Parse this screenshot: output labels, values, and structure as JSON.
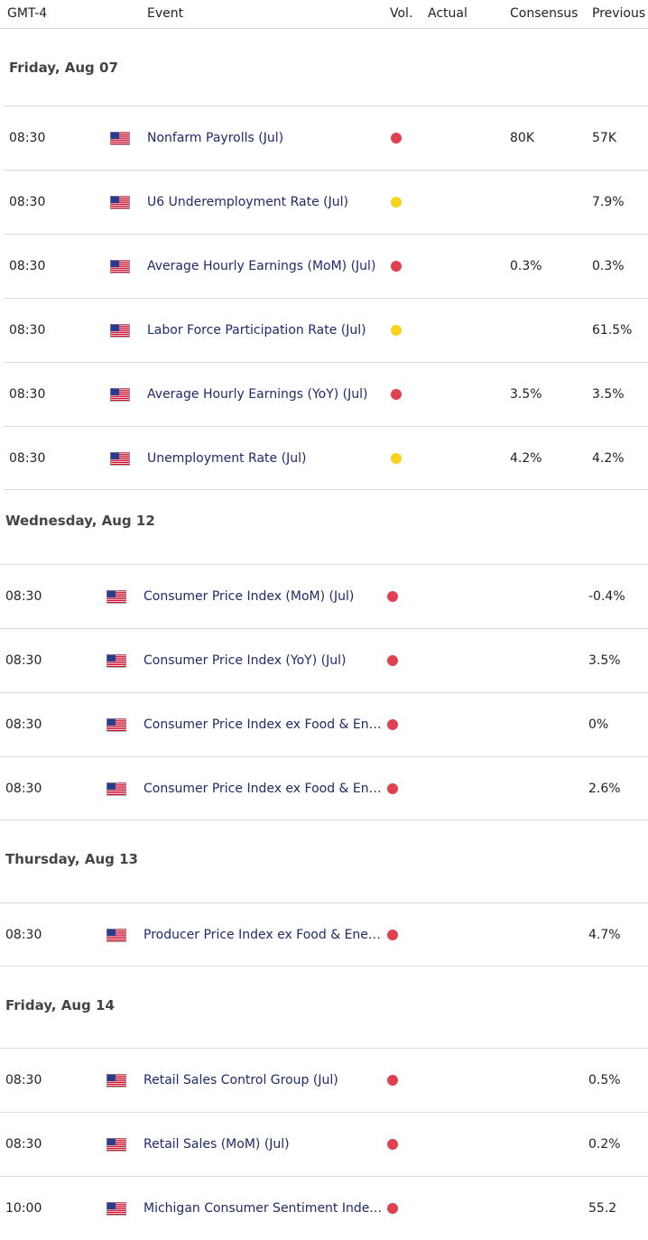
{
  "header": {
    "timezone": "GMT-4",
    "event": "Event",
    "vol": "Vol.",
    "actual": "Actual",
    "consensus": "Consensus",
    "previous": "Previous"
  },
  "colors": {
    "high": "#e0404f",
    "medium": "#f8d21c",
    "event_text": "#1f2a6b"
  },
  "days": [
    {
      "label": "Friday, Aug 07",
      "rows": [
        {
          "time": "08:30",
          "country": "us-flag-icon",
          "event": "Nonfarm Payrolls (Jul)",
          "vol": "high",
          "actual": "",
          "consensus": "80K",
          "previous": "57K"
        },
        {
          "time": "08:30",
          "country": "us-flag-icon",
          "event": "U6 Underemployment Rate (Jul)",
          "vol": "medium",
          "actual": "",
          "consensus": "",
          "previous": "7.9%"
        },
        {
          "time": "08:30",
          "country": "us-flag-icon",
          "event": "Average Hourly Earnings (MoM) (Jul)",
          "vol": "high",
          "actual": "",
          "consensus": "0.3%",
          "previous": "0.3%"
        },
        {
          "time": "08:30",
          "country": "us-flag-icon",
          "event": "Labor Force Participation Rate (Jul)",
          "vol": "medium",
          "actual": "",
          "consensus": "",
          "previous": "61.5%"
        },
        {
          "time": "08:30",
          "country": "us-flag-icon",
          "event": "Average Hourly Earnings (YoY) (Jul)",
          "vol": "high",
          "actual": "",
          "consensus": "3.5%",
          "previous": "3.5%"
        },
        {
          "time": "08:30",
          "country": "us-flag-icon",
          "event": "Unemployment Rate (Jul)",
          "vol": "medium",
          "actual": "",
          "consensus": "4.2%",
          "previous": "4.2%"
        }
      ]
    },
    {
      "label": "Wednesday, Aug 12",
      "rows": [
        {
          "time": "08:30",
          "country": "us-flag-icon",
          "event": "Consumer Price Index (MoM) (Jul)",
          "vol": "high",
          "actual": "",
          "consensus": "",
          "previous": "-0.4%"
        },
        {
          "time": "08:30",
          "country": "us-flag-icon",
          "event": "Consumer Price Index (YoY) (Jul)",
          "vol": "high",
          "actual": "",
          "consensus": "",
          "previous": "3.5%"
        },
        {
          "time": "08:30",
          "country": "us-flag-icon",
          "event": "Consumer Price Index ex Food & Energy (MoM) (Jul)",
          "vol": "high",
          "actual": "",
          "consensus": "",
          "previous": "0%"
        },
        {
          "time": "08:30",
          "country": "us-flag-icon",
          "event": "Consumer Price Index ex Food & Energy (YoY) (Jul)",
          "vol": "high",
          "actual": "",
          "consensus": "",
          "previous": "2.6%"
        }
      ]
    },
    {
      "label": "Thursday, Aug 13",
      "rows": [
        {
          "time": "08:30",
          "country": "us-flag-icon",
          "event": "Producer Price Index ex Food & Energy (YoY) (Jul)",
          "vol": "high",
          "actual": "",
          "consensus": "",
          "previous": "4.7%"
        }
      ]
    },
    {
      "label": "Friday, Aug 14",
      "rows": [
        {
          "time": "08:30",
          "country": "us-flag-icon",
          "event": "Retail Sales Control Group (Jul)",
          "vol": "high",
          "actual": "",
          "consensus": "",
          "previous": "0.5%"
        },
        {
          "time": "08:30",
          "country": "us-flag-icon",
          "event": "Retail Sales (MoM) (Jul)",
          "vol": "high",
          "actual": "",
          "consensus": "",
          "previous": "0.2%"
        },
        {
          "time": "10:00",
          "country": "us-flag-icon",
          "event": "Michigan Consumer Sentiment Index (Aug)",
          "vol": "high",
          "actual": "",
          "consensus": "",
          "previous": "55.2"
        }
      ]
    }
  ]
}
